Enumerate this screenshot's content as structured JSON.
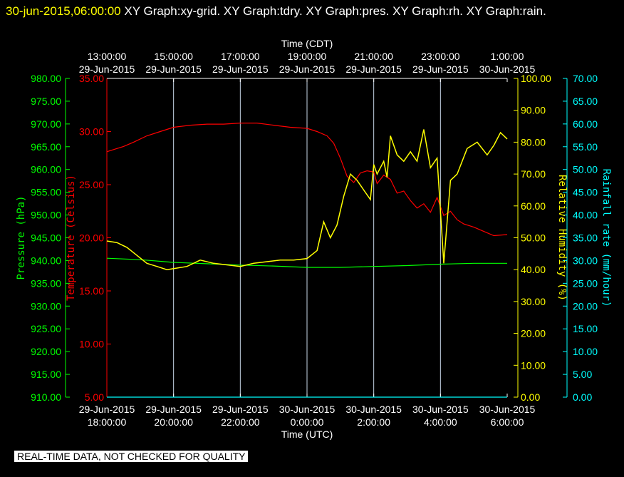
{
  "header": {
    "timestamp": "30-jun-2015,06:00:00",
    "titles": "XY Graph:xy-grid.  XY Graph:tdry.  XY Graph:pres.  XY Graph:rh.  XY Graph:rain."
  },
  "footer_note": "REAL-TIME DATA, NOT CHECKED FOR QUALITY",
  "chart_data": {
    "type": "line",
    "top_axis": {
      "title": "Time (CDT)",
      "ticks": [
        {
          "time": "13:00:00",
          "date": "29-Jun-2015"
        },
        {
          "time": "15:00:00",
          "date": "29-Jun-2015"
        },
        {
          "time": "17:00:00",
          "date": "29-Jun-2015"
        },
        {
          "time": "19:00:00",
          "date": "29-Jun-2015"
        },
        {
          "time": "21:00:00",
          "date": "29-Jun-2015"
        },
        {
          "time": "23:00:00",
          "date": "29-Jun-2015"
        },
        {
          "time": "1:00:00",
          "date": "30-Jun-2015"
        }
      ]
    },
    "bottom_axis": {
      "title": "Time (UTC)",
      "ticks": [
        {
          "date": "29-Jun-2015",
          "time": "18:00:00"
        },
        {
          "date": "29-Jun-2015",
          "time": "20:00:00"
        },
        {
          "date": "29-Jun-2015",
          "time": "22:00:00"
        },
        {
          "date": "30-Jun-2015",
          "time": "0:00:00"
        },
        {
          "date": "30-Jun-2015",
          "time": "2:00:00"
        },
        {
          "date": "30-Jun-2015",
          "time": "4:00:00"
        },
        {
          "date": "30-Jun-2015",
          "time": "6:00:00"
        }
      ],
      "x_range_hours_utc": [
        18,
        30
      ]
    },
    "axes": {
      "pressure": {
        "label": "Pressure (hPa)",
        "color": "#00ff00",
        "min": 910,
        "max": 980,
        "step": 5,
        "decimals": 2
      },
      "temperature": {
        "label": "Temperature (Celsius)",
        "color": "#ff0000",
        "min": 5,
        "max": 35,
        "step": 5,
        "decimals": 2
      },
      "humidity": {
        "label": "Relative Humidity (%)",
        "color": "#ffff00",
        "min": 0,
        "max": 100,
        "step": 10,
        "decimals": 2
      },
      "rain": {
        "label": "Rainfall rate (mm/hour)",
        "color": "#00ffff",
        "min": 0,
        "max": 70,
        "step": 5,
        "decimals": 2
      }
    },
    "grid": true,
    "series": [
      {
        "name": "tdry",
        "axis": "temperature",
        "color": "#ff0000",
        "x": [
          18.0,
          18.2,
          18.5,
          18.8,
          19.2,
          19.6,
          20.0,
          20.5,
          21.0,
          21.5,
          22.0,
          22.5,
          23.0,
          23.5,
          24.0,
          24.3,
          24.6,
          24.8,
          25.0,
          25.2,
          25.4,
          25.6,
          25.8,
          26.0,
          26.1,
          26.3,
          26.5,
          26.7,
          26.9,
          27.1,
          27.3,
          27.5,
          27.7,
          27.9,
          28.1,
          28.3,
          28.5,
          28.7,
          29.0,
          29.3,
          29.6,
          30.0
        ],
        "y": [
          28.1,
          28.3,
          28.6,
          29.0,
          29.6,
          30.0,
          30.4,
          30.6,
          30.7,
          30.7,
          30.8,
          30.8,
          30.6,
          30.4,
          30.3,
          30.0,
          29.6,
          28.9,
          27.5,
          25.8,
          25.2,
          26.1,
          26.3,
          26.2,
          25.1,
          25.9,
          25.5,
          24.2,
          24.4,
          23.5,
          22.8,
          23.2,
          22.4,
          23.8,
          22.1,
          22.5,
          21.7,
          21.3,
          21.0,
          20.6,
          20.2,
          20.3
        ]
      },
      {
        "name": "pres",
        "axis": "pressure",
        "color": "#00ff00",
        "x": [
          18.0,
          19.0,
          20.0,
          21.0,
          22.0,
          23.0,
          24.0,
          25.0,
          26.0,
          27.0,
          28.0,
          29.0,
          30.0
        ],
        "y": [
          940.5,
          940.2,
          939.6,
          939.3,
          939.0,
          938.8,
          938.5,
          938.5,
          938.7,
          938.9,
          939.2,
          939.4,
          939.4
        ]
      },
      {
        "name": "rh",
        "axis": "humidity",
        "color": "#ffff00",
        "x": [
          18.0,
          18.3,
          18.6,
          18.9,
          19.2,
          19.5,
          19.8,
          20.1,
          20.4,
          20.8,
          21.2,
          21.6,
          22.0,
          22.4,
          22.8,
          23.2,
          23.6,
          24.0,
          24.3,
          24.5,
          24.7,
          24.9,
          25.1,
          25.3,
          25.5,
          25.7,
          25.9,
          26.0,
          26.1,
          26.3,
          26.4,
          26.5,
          26.7,
          26.9,
          27.1,
          27.3,
          27.5,
          27.7,
          27.9,
          28.1,
          28.3,
          28.5,
          28.8,
          29.1,
          29.4,
          29.6,
          29.8,
          30.0
        ],
        "y": [
          49.0,
          48.5,
          47.0,
          44.5,
          42.0,
          41.0,
          40.0,
          40.5,
          41.0,
          43.0,
          42.0,
          41.5,
          41.0,
          42.0,
          42.5,
          43.0,
          43.0,
          43.5,
          46.0,
          55.0,
          50.0,
          54.0,
          63.0,
          70.0,
          68.0,
          65.0,
          62.0,
          73.0,
          70.0,
          74.0,
          69.0,
          82.0,
          76.0,
          74.0,
          77.0,
          74.0,
          84.0,
          72.0,
          75.0,
          42.0,
          68.0,
          70.0,
          78.0,
          80.0,
          76.0,
          79.0,
          83.0,
          81.0
        ]
      },
      {
        "name": "rain",
        "axis": "rain",
        "color": "#00ffff",
        "x": [
          18.0,
          30.0
        ],
        "y": [
          0.0,
          0.0
        ]
      }
    ]
  }
}
